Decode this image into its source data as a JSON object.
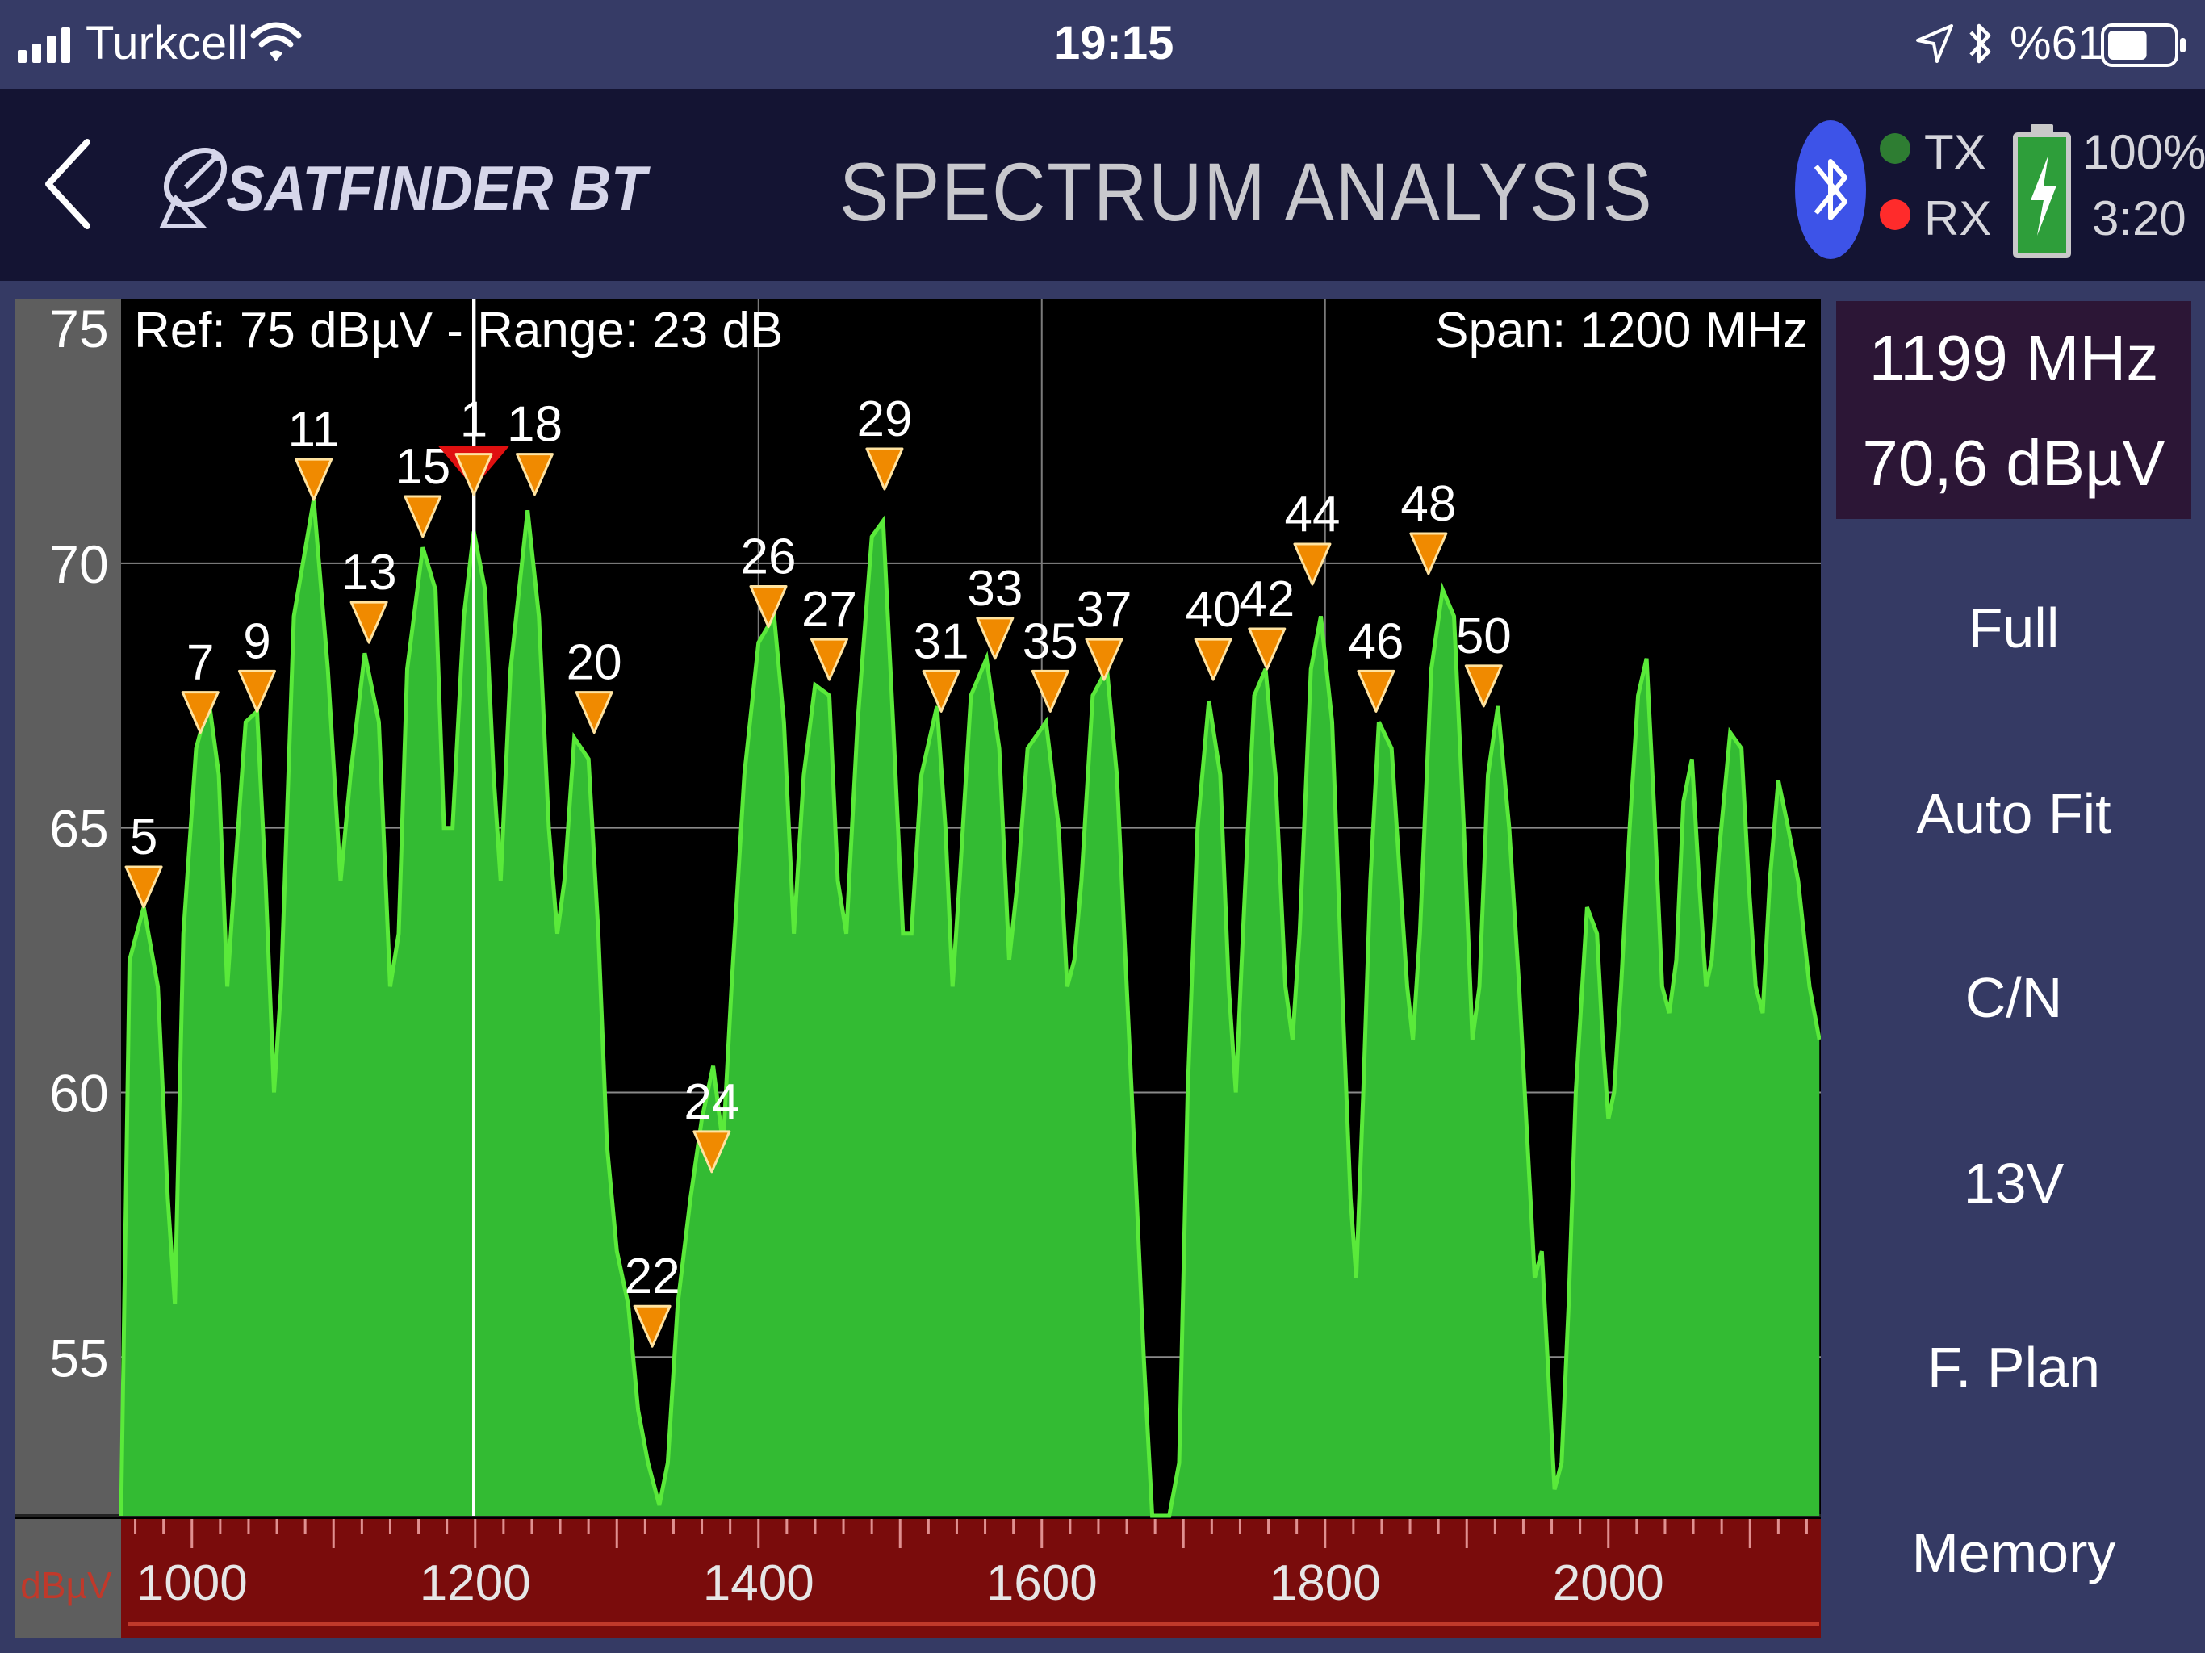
{
  "status_bar": {
    "carrier": "Turkcell",
    "time": "19:15",
    "battery_percent": "%61",
    "battery_level": 0.61
  },
  "header": {
    "back_icon": "chevron-left-icon",
    "brand": "SATFINDER BT",
    "title": "SPECTRUM ANALYSIS",
    "tx_label": "TX",
    "rx_label": "RX",
    "tx_color": "#2e7d32",
    "rx_color": "#ff2b2b",
    "battery_percent": "100%",
    "battery_time": "3:20",
    "bluetooth_color": "#3d53e8"
  },
  "chart_info": {
    "ref_text": "Ref: 75 dBµV - Range: 23 dB",
    "span_text": "Span: 1200 MHz",
    "y_unit": "dBµV"
  },
  "readout": {
    "frequency": "1199 MHz",
    "level": "70,6 dBµV"
  },
  "menu": [
    {
      "label": "Full"
    },
    {
      "label": "Auto Fit"
    },
    {
      "label": "C/N"
    },
    {
      "label": "13V"
    },
    {
      "label": "F. Plan"
    },
    {
      "label": "Memory"
    }
  ],
  "chart_data": {
    "type": "area",
    "y_ticks": [
      "75",
      "70",
      "65",
      "60",
      "55"
    ],
    "x_ticks": [
      "1000",
      "1200",
      "1400",
      "1600",
      "1800",
      "2000"
    ],
    "xlim": [
      950,
      2150
    ],
    "ylim": [
      52,
      75
    ],
    "cursor_x": 1199,
    "fill_color": "#33bb33",
    "line_color": "#5aea3a",
    "spectrum": [
      [
        950,
        52
      ],
      [
        956,
        62.5
      ],
      [
        966,
        63.5
      ],
      [
        976,
        62
      ],
      [
        983,
        58
      ],
      [
        988,
        56
      ],
      [
        994,
        63
      ],
      [
        1003,
        66.5
      ],
      [
        1012,
        67.4
      ],
      [
        1019,
        66
      ],
      [
        1025,
        62
      ],
      [
        1030,
        64
      ],
      [
        1038,
        67
      ],
      [
        1046,
        67.2
      ],
      [
        1052,
        64
      ],
      [
        1058,
        60
      ],
      [
        1063,
        62
      ],
      [
        1072,
        69
      ],
      [
        1086,
        71.2
      ],
      [
        1096,
        68
      ],
      [
        1105,
        64
      ],
      [
        1112,
        66
      ],
      [
        1122,
        68.3
      ],
      [
        1132,
        67
      ],
      [
        1140,
        62
      ],
      [
        1146,
        63
      ],
      [
        1152,
        68
      ],
      [
        1163,
        70.3
      ],
      [
        1172,
        69.5
      ],
      [
        1178,
        65
      ],
      [
        1184,
        65
      ],
      [
        1192,
        69
      ],
      [
        1199,
        70.6
      ],
      [
        1207,
        69.5
      ],
      [
        1213,
        66
      ],
      [
        1218,
        64
      ],
      [
        1225,
        68
      ],
      [
        1237,
        71
      ],
      [
        1245,
        69
      ],
      [
        1252,
        65
      ],
      [
        1258,
        63
      ],
      [
        1263,
        64
      ],
      [
        1270,
        66.7
      ],
      [
        1280,
        66.3
      ],
      [
        1287,
        63
      ],
      [
        1293,
        59
      ],
      [
        1300,
        57
      ],
      [
        1308,
        56
      ],
      [
        1315,
        54
      ],
      [
        1322,
        53
      ],
      [
        1330,
        52.2
      ],
      [
        1336,
        53
      ],
      [
        1343,
        56
      ],
      [
        1352,
        58
      ],
      [
        1360,
        59.5
      ],
      [
        1368,
        60.5
      ],
      [
        1375,
        59
      ],
      [
        1381,
        62
      ],
      [
        1390,
        66
      ],
      [
        1400,
        68.5
      ],
      [
        1411,
        69
      ],
      [
        1418,
        67
      ],
      [
        1425,
        63
      ],
      [
        1432,
        66
      ],
      [
        1440,
        67.7
      ],
      [
        1450,
        67.5
      ],
      [
        1456,
        64
      ],
      [
        1462,
        63
      ],
      [
        1470,
        67
      ],
      [
        1480,
        70.5
      ],
      [
        1488,
        70.8
      ],
      [
        1495,
        67
      ],
      [
        1502,
        63
      ],
      [
        1508,
        63
      ],
      [
        1515,
        66
      ],
      [
        1526,
        67.3
      ],
      [
        1532,
        65
      ],
      [
        1537,
        62
      ],
      [
        1542,
        64
      ],
      [
        1550,
        67.5
      ],
      [
        1561,
        68.2
      ],
      [
        1570,
        66.5
      ],
      [
        1577,
        62.5
      ],
      [
        1583,
        64
      ],
      [
        1590,
        66.5
      ],
      [
        1603,
        67
      ],
      [
        1612,
        65
      ],
      [
        1618,
        62
      ],
      [
        1623,
        62.5
      ],
      [
        1628,
        64
      ],
      [
        1636,
        67.5
      ],
      [
        1646,
        68
      ],
      [
        1653,
        66
      ],
      [
        1660,
        62
      ],
      [
        1667,
        58
      ],
      [
        1672,
        55
      ],
      [
        1678,
        52
      ],
      [
        1690,
        52
      ],
      [
        1697,
        53
      ],
      [
        1703,
        60
      ],
      [
        1710,
        65
      ],
      [
        1718,
        67.4
      ],
      [
        1726,
        66
      ],
      [
        1732,
        62
      ],
      [
        1737,
        60
      ],
      [
        1742,
        63
      ],
      [
        1750,
        67.5
      ],
      [
        1758,
        68
      ],
      [
        1765,
        66
      ],
      [
        1772,
        62
      ],
      [
        1777,
        61
      ],
      [
        1782,
        63
      ],
      [
        1790,
        68
      ],
      [
        1797,
        69
      ],
      [
        1805,
        67
      ],
      [
        1812,
        62
      ],
      [
        1818,
        58
      ],
      [
        1822,
        56.5
      ],
      [
        1827,
        60
      ],
      [
        1832,
        64
      ],
      [
        1838,
        67
      ],
      [
        1847,
        66.5
      ],
      [
        1853,
        64
      ],
      [
        1858,
        62
      ],
      [
        1862,
        61
      ],
      [
        1867,
        63
      ],
      [
        1875,
        68
      ],
      [
        1883,
        69.5
      ],
      [
        1891,
        69
      ],
      [
        1898,
        65
      ],
      [
        1904,
        61
      ],
      [
        1909,
        62
      ],
      [
        1915,
        66
      ],
      [
        1922,
        67.3
      ],
      [
        1930,
        65
      ],
      [
        1937,
        62
      ],
      [
        1943,
        59
      ],
      [
        1948,
        56.5
      ],
      [
        1953,
        57
      ],
      [
        1957,
        55
      ],
      [
        1962,
        52.5
      ],
      [
        1967,
        53
      ],
      [
        1972,
        56
      ],
      [
        1977,
        60
      ],
      [
        1985,
        63.5
      ],
      [
        1992,
        63
      ],
      [
        1996,
        61
      ],
      [
        2000,
        59.5
      ],
      [
        2004,
        60
      ],
      [
        2009,
        62
      ],
      [
        2015,
        65
      ],
      [
        2021,
        67.5
      ],
      [
        2027,
        68.2
      ],
      [
        2033,
        65
      ],
      [
        2038,
        62
      ],
      [
        2043,
        61.5
      ],
      [
        2048,
        62.5
      ],
      [
        2053,
        65.5
      ],
      [
        2059,
        66.3
      ],
      [
        2064,
        64
      ],
      [
        2069,
        62
      ],
      [
        2073,
        62.5
      ],
      [
        2078,
        64.5
      ],
      [
        2086,
        66.8
      ],
      [
        2094,
        66.5
      ],
      [
        2099,
        64
      ],
      [
        2104,
        62
      ],
      [
        2109,
        61.5
      ],
      [
        2114,
        64
      ],
      [
        2120,
        65.9
      ],
      [
        2127,
        65
      ],
      [
        2134,
        64
      ],
      [
        2142,
        62
      ],
      [
        2149,
        61
      ]
    ],
    "markers": [
      {
        "label": "5",
        "x": 966,
        "y": 63.5
      },
      {
        "label": "7",
        "x": 1006,
        "y": 66.8
      },
      {
        "label": "9",
        "x": 1046,
        "y": 67.2
      },
      {
        "label": "11",
        "x": 1086,
        "y": 71.2
      },
      {
        "label": "13",
        "x": 1125,
        "y": 68.5
      },
      {
        "label": "15",
        "x": 1163,
        "y": 70.5
      },
      {
        "label": "1",
        "x": 1199,
        "y": 71.3,
        "selected": true
      },
      {
        "label": "18",
        "x": 1242,
        "y": 71.3
      },
      {
        "label": "20",
        "x": 1284,
        "y": 66.8
      },
      {
        "label": "22",
        "x": 1325,
        "y": 55.2
      },
      {
        "label": "24",
        "x": 1367,
        "y": 58.5
      },
      {
        "label": "26",
        "x": 1407,
        "y": 68.8
      },
      {
        "label": "27",
        "x": 1450,
        "y": 67.8
      },
      {
        "label": "29",
        "x": 1489,
        "y": 71.4
      },
      {
        "label": "31",
        "x": 1529,
        "y": 67.2
      },
      {
        "label": "33",
        "x": 1567,
        "y": 68.2
      },
      {
        "label": "35",
        "x": 1606,
        "y": 67.2
      },
      {
        "label": "37",
        "x": 1644,
        "y": 67.8
      },
      {
        "label": "40",
        "x": 1721,
        "y": 67.8
      },
      {
        "label": "42",
        "x": 1759,
        "y": 68.0
      },
      {
        "label": "44",
        "x": 1791,
        "y": 69.6
      },
      {
        "label": "46",
        "x": 1836,
        "y": 67.2
      },
      {
        "label": "48",
        "x": 1873,
        "y": 69.8
      },
      {
        "label": "50",
        "x": 1912,
        "y": 67.3
      }
    ]
  }
}
